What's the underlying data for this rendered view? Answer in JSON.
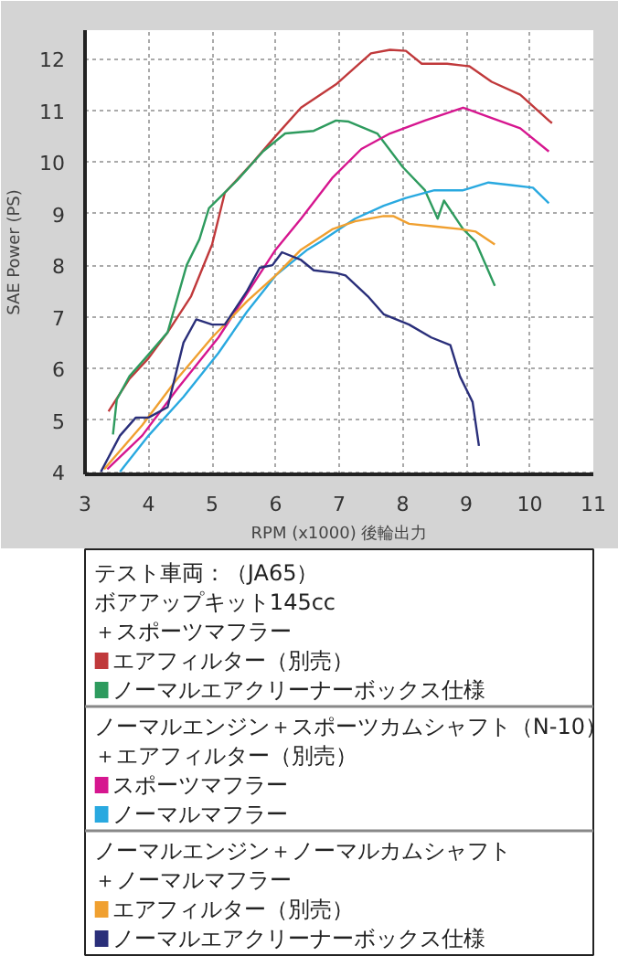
{
  "chart_data": {
    "type": "line",
    "xlabel": "RPM (x1000) 後輪出力",
    "ylabel": "SAE Power (PS)",
    "xlim": [
      3,
      11
    ],
    "ylim": [
      3.95,
      12.55
    ],
    "xticks": [
      3,
      4,
      5,
      6,
      7,
      8,
      9,
      10,
      11
    ],
    "yticks": [
      4,
      5,
      6,
      7,
      8,
      9,
      10,
      11,
      12
    ],
    "grid": true,
    "legend": "bottom",
    "line_style": "solid",
    "annotations": [
      "テスト車両：（JA65）",
      "ボアアップキット145cc",
      "＋スポーツマフラー",
      "ノーマルエンジン＋スポーツカムシャフト（N-10）",
      "＋エアフィルター（別売）",
      "ノーマルエンジン＋ノーマルカムシャフト",
      "＋ノーマルマフラー"
    ],
    "series": [
      {
        "name": "エアフィルター（別売）",
        "color": "#c0393b",
        "x": [
          3.37,
          3.7,
          4.0,
          4.3,
          4.67,
          5.0,
          5.2,
          5.65,
          6.0,
          6.4,
          6.95,
          7.5,
          7.8,
          8.05,
          8.3,
          8.7,
          9.05,
          9.4,
          9.85,
          10.3,
          10.35
        ],
        "values": [
          5.17,
          5.8,
          6.2,
          6.7,
          7.4,
          8.4,
          9.4,
          10.0,
          10.5,
          11.05,
          11.5,
          12.1,
          12.17,
          12.15,
          11.9,
          11.9,
          11.85,
          11.55,
          11.3,
          10.8,
          10.75
        ]
      },
      {
        "name": "ノーマルエアクリーナーボックス仕様",
        "color": "#2e9b5e",
        "x": [
          3.44,
          3.5,
          3.7,
          3.95,
          4.3,
          4.6,
          4.8,
          4.95,
          5.4,
          5.8,
          6.15,
          6.6,
          6.95,
          7.15,
          7.6,
          8.0,
          8.35,
          8.55,
          8.65,
          8.95,
          9.15,
          9.45
        ],
        "values": [
          4.72,
          5.4,
          5.85,
          6.2,
          6.7,
          8.0,
          8.5,
          9.1,
          9.65,
          10.2,
          10.55,
          10.6,
          10.8,
          10.78,
          10.55,
          9.9,
          9.45,
          8.9,
          9.25,
          8.7,
          8.45,
          7.6
        ]
      },
      {
        "name": "スポーツマフラー",
        "color": "#d6168f",
        "x": [
          3.35,
          3.9,
          4.45,
          5.1,
          5.55,
          6.0,
          6.4,
          6.9,
          7.35,
          7.8,
          8.35,
          8.95,
          9.4,
          9.85,
          10.3
        ],
        "values": [
          4.05,
          4.7,
          5.6,
          6.6,
          7.45,
          8.3,
          8.9,
          9.7,
          10.25,
          10.55,
          10.8,
          11.05,
          10.85,
          10.65,
          10.2
        ]
      },
      {
        "name": "ノーマルマフラー",
        "color": "#29a9e0",
        "x": [
          3.55,
          4.0,
          4.55,
          5.1,
          5.55,
          6.0,
          6.5,
          6.7,
          7.25,
          7.7,
          8.05,
          8.5,
          8.95,
          9.35,
          9.7,
          10.05,
          10.3
        ],
        "values": [
          4.0,
          4.7,
          5.45,
          6.3,
          7.1,
          7.8,
          8.3,
          8.45,
          8.9,
          9.15,
          9.3,
          9.45,
          9.45,
          9.6,
          9.55,
          9.5,
          9.2
        ]
      },
      {
        "name": "エアフィルター（別売）",
        "color": "#f0a030",
        "x": [
          3.3,
          3.9,
          4.45,
          5.0,
          5.55,
          6.0,
          6.4,
          6.9,
          7.25,
          7.7,
          7.85,
          8.1,
          8.5,
          8.9,
          9.15,
          9.45
        ],
        "values": [
          4.05,
          4.9,
          5.8,
          6.6,
          7.3,
          7.8,
          8.3,
          8.7,
          8.85,
          8.95,
          8.95,
          8.8,
          8.75,
          8.7,
          8.65,
          8.4
        ]
      },
      {
        "name": "ノーマルエアクリーナーボックス仕様",
        "color": "#2a2f7a",
        "x": [
          3.25,
          3.55,
          3.8,
          4.0,
          4.3,
          4.55,
          4.75,
          5.0,
          5.2,
          5.55,
          5.75,
          5.95,
          6.1,
          6.4,
          6.6,
          6.95,
          7.1,
          7.45,
          7.7,
          8.1,
          8.45,
          8.75,
          8.9,
          9.1,
          9.2
        ],
        "values": [
          4.0,
          4.7,
          5.05,
          5.05,
          5.25,
          6.5,
          6.95,
          6.85,
          6.85,
          7.5,
          7.95,
          8.0,
          8.25,
          8.1,
          7.9,
          7.85,
          7.8,
          7.4,
          7.05,
          6.85,
          6.6,
          6.45,
          5.85,
          5.35,
          4.5
        ]
      }
    ]
  }
}
